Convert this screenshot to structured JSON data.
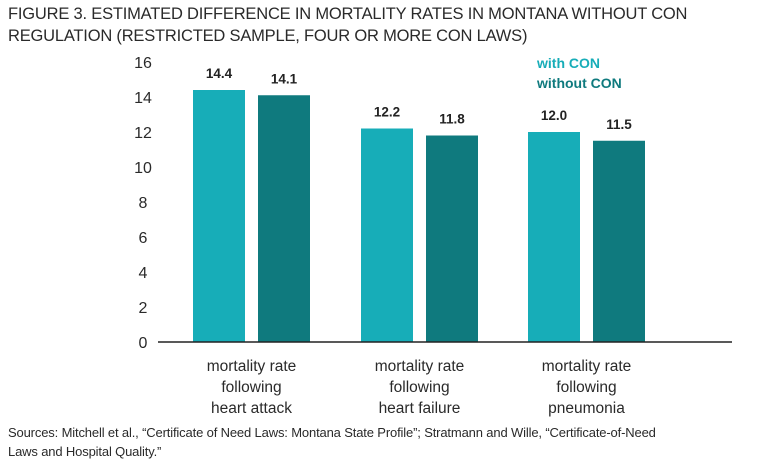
{
  "title_lines": [
    "FIGURE 3. ESTIMATED DIFFERENCE IN MORTALITY RATES IN MONTANA WITHOUT CON",
    "REGULATION (RESTRICTED SAMPLE, FOUR OR MORE CON LAWS)"
  ],
  "source_lines": [
    "Sources: Mitchell et al., “Certificate of Need Laws: Montana State Profile”; Stratmann and Wille, “Certificate-of-Need",
    "Laws and Hospital Quality.”"
  ],
  "colors": {
    "with_con": "#17adb8",
    "without_con": "#0f7a7e"
  },
  "chart_data": {
    "type": "bar",
    "title": "FIGURE 3. ESTIMATED DIFFERENCE IN MORTALITY RATES IN MONTANA WITHOUT CON REGULATION (RESTRICTED SAMPLE, FOUR OR MORE CON LAWS)",
    "xlabel": "",
    "ylabel": "",
    "ylim": [
      0,
      16
    ],
    "yticks": [
      0,
      2,
      4,
      6,
      8,
      10,
      12,
      14,
      16
    ],
    "grid": false,
    "legend_position": "top-right",
    "categories": [
      [
        "mortality rate",
        "following",
        "heart attack"
      ],
      [
        "mortality rate",
        "following",
        "heart failure"
      ],
      [
        "mortality rate",
        "following",
        "pneumonia"
      ]
    ],
    "series": [
      {
        "name": "with CON",
        "color": "#17adb8",
        "values": [
          14.4,
          12.2,
          12.0
        ],
        "labels": [
          "14.4",
          "12.2",
          "12.0"
        ]
      },
      {
        "name": "without CON",
        "color": "#0f7a7e",
        "values": [
          14.1,
          11.8,
          11.5
        ],
        "labels": [
          "14.1",
          "11.8",
          "11.5"
        ]
      }
    ]
  }
}
